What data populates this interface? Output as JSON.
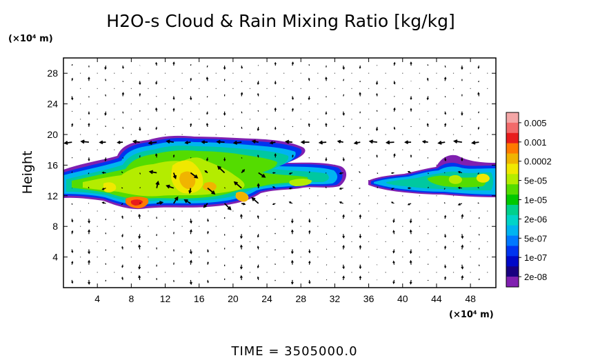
{
  "chart_data": {
    "type": "heatmap",
    "title": "H2O-s Cloud & Rain Mixing Ratio [kg/kg]",
    "ylabel": "Height",
    "x_unit": "(×10⁴ m)",
    "y_unit": "(×10⁴ m)",
    "xlim": [
      0,
      51
    ],
    "ylim": [
      0,
      30
    ],
    "x_ticks": [
      "4",
      "8",
      "12",
      "16",
      "20",
      "24",
      "28",
      "32",
      "36",
      "40",
      "44",
      "48"
    ],
    "x_tick_values": [
      4,
      8,
      12,
      16,
      20,
      24,
      28,
      32,
      36,
      40,
      44,
      48
    ],
    "y_ticks": [
      "4",
      "8",
      "12",
      "16",
      "20",
      "24",
      "28"
    ],
    "y_tick_values": [
      4,
      8,
      12,
      16,
      20,
      24,
      28
    ],
    "grid": "dotted",
    "colorbar": {
      "labels": [
        "0.005",
        "0.001",
        "0.0002",
        "5e-05",
        "1e-05",
        "2e-06",
        "5e-07",
        "1e-07",
        "2e-08"
      ],
      "colors": [
        "#f4a6a6",
        "#f26a6a",
        "#e81c1c",
        "#ff7a00",
        "#f0b400",
        "#f0e800",
        "#b4ec00",
        "#54dc00",
        "#00c800",
        "#00d08c",
        "#00d4c8",
        "#00b4f0",
        "#0078ff",
        "#0034f0",
        "#0008c8",
        "#180080",
        "#8020b0"
      ]
    },
    "field_colors": {
      "trace": "#8020b0",
      "low": "#0034f0",
      "mid_low": "#00b4f0",
      "mid": "#00c8a0",
      "mid_high": "#54dc00",
      "high": "#f0e800",
      "peak": "#ff7a00",
      "max": "#e81c1c"
    },
    "cloud_bands": [
      {
        "name": "main anvil",
        "x": [
          0,
          33
        ],
        "y_bottom": 11,
        "y_top": 19.5
      },
      {
        "name": "secondary cloud",
        "x": [
          36.5,
          51
        ],
        "y_bottom": 11.5,
        "y_top": 17
      }
    ],
    "wind_vectors": "shown"
  },
  "footer": {
    "time_label": "TIME = 3505000.0"
  }
}
